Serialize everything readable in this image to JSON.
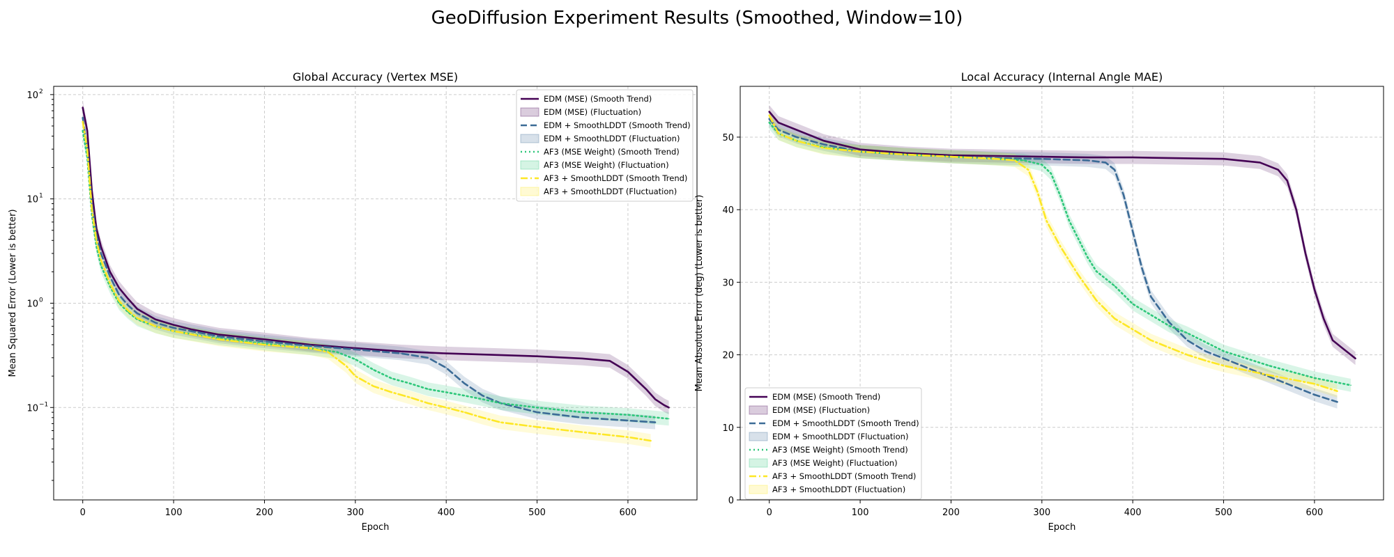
{
  "figure_title": "GeoDiffusion Experiment Results (Smoothed, Window=10)",
  "colors": {
    "edm_mse": "#440154",
    "edm_sl": "#3b6b96",
    "af3_mse": "#2ec77a",
    "af3_sl": "#fde725"
  },
  "chart_data": [
    {
      "type": "line",
      "title": "Global Accuracy (Vertex MSE)",
      "xlabel": "Epoch",
      "ylabel": "Mean Squared Error (Lower is better)",
      "xlim": [
        -32,
        676
      ],
      "ylim": [
        0.013,
        120
      ],
      "yscale": "log",
      "grid": true,
      "legend_position": "top-right",
      "x_ticks": [
        0,
        100,
        200,
        300,
        400,
        500,
        600
      ],
      "x_tick_labels": [
        "0",
        "100",
        "200",
        "300",
        "400",
        "500",
        "600"
      ],
      "y_ticks": [
        0.1,
        1,
        10,
        100
      ],
      "y_tick_labels": [
        "10",
        "10",
        "10",
        "10"
      ],
      "y_tick_exponents": [
        "−1",
        "0",
        "1",
        "2"
      ],
      "series": [
        {
          "name": "EDM (MSE) (Smooth Trend)",
          "color_key": "edm_mse",
          "style": "solid",
          "x": [
            0,
            5,
            10,
            15,
            20,
            30,
            40,
            50,
            60,
            80,
            100,
            120,
            130,
            150,
            200,
            250,
            300,
            350,
            400,
            450,
            500,
            550,
            580,
            600,
            620,
            630,
            640,
            645
          ],
          "y": [
            75,
            45,
            12,
            5.2,
            3.5,
            2.0,
            1.4,
            1.1,
            0.88,
            0.7,
            0.62,
            0.56,
            0.54,
            0.5,
            0.45,
            0.4,
            0.37,
            0.345,
            0.33,
            0.32,
            0.31,
            0.295,
            0.28,
            0.22,
            0.15,
            0.12,
            0.105,
            0.1
          ]
        },
        {
          "name": "EDM + SmoothLDDT (Smooth Trend)",
          "color_key": "edm_sl",
          "style": "dashed",
          "x": [
            0,
            5,
            10,
            15,
            20,
            30,
            40,
            50,
            60,
            80,
            100,
            150,
            200,
            250,
            300,
            350,
            380,
            400,
            420,
            440,
            460,
            500,
            550,
            600,
            620,
            630
          ],
          "y": [
            60,
            30,
            9,
            4.5,
            3.0,
            1.8,
            1.2,
            0.95,
            0.8,
            0.65,
            0.58,
            0.48,
            0.43,
            0.39,
            0.36,
            0.33,
            0.3,
            0.24,
            0.17,
            0.13,
            0.11,
            0.09,
            0.08,
            0.075,
            0.073,
            0.072
          ]
        },
        {
          "name": "AF3 (MSE Weight) (Smooth Trend)",
          "color_key": "af3_mse",
          "style": "dotted",
          "x": [
            0,
            5,
            10,
            15,
            20,
            30,
            40,
            50,
            60,
            80,
            100,
            150,
            200,
            250,
            280,
            300,
            320,
            340,
            360,
            380,
            400,
            420,
            440,
            460,
            500,
            550,
            600,
            645
          ],
          "y": [
            45,
            25,
            7,
            3.5,
            2.3,
            1.45,
            1.0,
            0.82,
            0.7,
            0.6,
            0.54,
            0.46,
            0.41,
            0.37,
            0.34,
            0.29,
            0.23,
            0.19,
            0.17,
            0.15,
            0.14,
            0.13,
            0.12,
            0.11,
            0.1,
            0.09,
            0.085,
            0.078
          ]
        },
        {
          "name": "AF3 + SmoothLDDT (Smooth Trend)",
          "color_key": "af3_sl",
          "style": "dashdot",
          "x": [
            0,
            5,
            10,
            15,
            20,
            30,
            40,
            50,
            60,
            80,
            100,
            150,
            200,
            250,
            270,
            290,
            300,
            320,
            340,
            360,
            380,
            400,
            420,
            440,
            460,
            500,
            550,
            600,
            625
          ],
          "y": [
            55,
            30,
            8,
            4.0,
            2.6,
            1.55,
            1.05,
            0.85,
            0.72,
            0.6,
            0.54,
            0.45,
            0.4,
            0.37,
            0.34,
            0.25,
            0.2,
            0.16,
            0.14,
            0.125,
            0.11,
            0.1,
            0.09,
            0.08,
            0.072,
            0.065,
            0.058,
            0.052,
            0.048
          ]
        }
      ],
      "legend": [
        {
          "label": "EDM (MSE) (Smooth Trend)",
          "kind": "line",
          "color_key": "edm_mse",
          "style": "solid"
        },
        {
          "label": "EDM (MSE) (Fluctuation)",
          "kind": "patch",
          "color_key": "edm_mse"
        },
        {
          "label": "EDM + SmoothLDDT (Smooth Trend)",
          "kind": "line",
          "color_key": "edm_sl",
          "style": "dashed"
        },
        {
          "label": "EDM + SmoothLDDT (Fluctuation)",
          "kind": "patch",
          "color_key": "edm_sl"
        },
        {
          "label": "AF3 (MSE Weight) (Smooth Trend)",
          "kind": "line",
          "color_key": "af3_mse",
          "style": "dotted"
        },
        {
          "label": "AF3 (MSE Weight) (Fluctuation)",
          "kind": "patch",
          "color_key": "af3_mse"
        },
        {
          "label": "AF3 + SmoothLDDT (Smooth Trend)",
          "kind": "line",
          "color_key": "af3_sl",
          "style": "dashdot"
        },
        {
          "label": "AF3 + SmoothLDDT (Fluctuation)",
          "kind": "patch",
          "color_key": "af3_sl"
        }
      ]
    },
    {
      "type": "line",
      "title": "Local Accuracy (Internal Angle MAE)",
      "xlabel": "Epoch",
      "ylabel": "Mean Absolute Error (deg) (Lower is better)",
      "xlim": [
        -32,
        676
      ],
      "ylim": [
        0,
        57
      ],
      "yscale": "linear",
      "grid": true,
      "legend_position": "lower-left",
      "x_ticks": [
        0,
        100,
        200,
        300,
        400,
        500,
        600
      ],
      "x_tick_labels": [
        "0",
        "100",
        "200",
        "300",
        "400",
        "500",
        "600"
      ],
      "y_ticks": [
        0,
        10,
        20,
        30,
        40,
        50
      ],
      "y_tick_labels": [
        "0",
        "10",
        "20",
        "30",
        "40",
        "50"
      ],
      "y_tick_exponents": [],
      "series": [
        {
          "name": "EDM (MSE) (Smooth Trend)",
          "color_key": "edm_mse",
          "style": "solid",
          "x": [
            0,
            10,
            30,
            60,
            100,
            150,
            200,
            250,
            300,
            350,
            400,
            450,
            500,
            540,
            560,
            570,
            580,
            590,
            600,
            610,
            620,
            630,
            640,
            645
          ],
          "y": [
            53.5,
            52,
            51,
            49.5,
            48.3,
            47.8,
            47.5,
            47.4,
            47.3,
            47.2,
            47.2,
            47.1,
            47.0,
            46.5,
            45.5,
            44,
            40,
            34,
            29,
            25,
            22,
            21,
            20,
            19.5
          ]
        },
        {
          "name": "EDM + SmoothLDDT (Smooth Trend)",
          "color_key": "edm_sl",
          "style": "dashed",
          "x": [
            0,
            10,
            30,
            60,
            100,
            150,
            200,
            250,
            300,
            350,
            370,
            380,
            390,
            400,
            410,
            420,
            440,
            460,
            480,
            500,
            520,
            560,
            600,
            625
          ],
          "y": [
            52.5,
            51,
            50,
            49,
            48,
            47.6,
            47.3,
            47.1,
            47.0,
            46.8,
            46.5,
            45.5,
            42,
            37,
            32,
            28,
            24.5,
            22,
            20.5,
            19.5,
            18.5,
            16.5,
            14.5,
            13.5
          ]
        },
        {
          "name": "AF3 (MSE Weight) (Smooth Trend)",
          "color_key": "af3_mse",
          "style": "dotted",
          "x": [
            0,
            10,
            30,
            60,
            100,
            150,
            200,
            250,
            280,
            300,
            310,
            320,
            330,
            340,
            350,
            360,
            380,
            400,
            420,
            440,
            460,
            500,
            550,
            600,
            640
          ],
          "y": [
            52,
            50.5,
            49.5,
            48.6,
            48,
            47.6,
            47.3,
            47.0,
            46.8,
            46.2,
            45,
            42,
            38.5,
            36,
            33.5,
            31.5,
            29.5,
            27,
            25.5,
            24,
            23,
            20.5,
            18.5,
            16.8,
            15.8
          ]
        },
        {
          "name": "AF3 + SmoothLDDT (Smooth Trend)",
          "color_key": "af3_sl",
          "style": "dashdot",
          "x": [
            0,
            10,
            30,
            60,
            100,
            150,
            200,
            250,
            270,
            285,
            295,
            305,
            320,
            340,
            360,
            380,
            400,
            420,
            440,
            460,
            480,
            500,
            550,
            600,
            625
          ],
          "y": [
            53,
            50.5,
            49.5,
            48.5,
            48,
            47.6,
            47.3,
            47.0,
            46.8,
            45.5,
            42.5,
            38.5,
            35,
            31,
            27.5,
            25,
            23.5,
            22,
            21,
            20,
            19.2,
            18.5,
            17.2,
            16,
            15
          ]
        }
      ],
      "legend": [
        {
          "label": "EDM (MSE) (Smooth Trend)",
          "kind": "line",
          "color_key": "edm_mse",
          "style": "solid"
        },
        {
          "label": "EDM (MSE) (Fluctuation)",
          "kind": "patch",
          "color_key": "edm_mse"
        },
        {
          "label": "EDM + SmoothLDDT (Smooth Trend)",
          "kind": "line",
          "color_key": "edm_sl",
          "style": "dashed"
        },
        {
          "label": "EDM + SmoothLDDT (Fluctuation)",
          "kind": "patch",
          "color_key": "edm_sl"
        },
        {
          "label": "AF3 (MSE Weight) (Smooth Trend)",
          "kind": "line",
          "color_key": "af3_mse",
          "style": "dotted"
        },
        {
          "label": "AF3 (MSE Weight) (Fluctuation)",
          "kind": "patch",
          "color_key": "af3_mse"
        },
        {
          "label": "AF3 + SmoothLDDT (Smooth Trend)",
          "kind": "line",
          "color_key": "af3_sl",
          "style": "dashdot"
        },
        {
          "label": "AF3 + SmoothLDDT (Fluctuation)",
          "kind": "patch",
          "color_key": "af3_sl"
        }
      ]
    }
  ]
}
